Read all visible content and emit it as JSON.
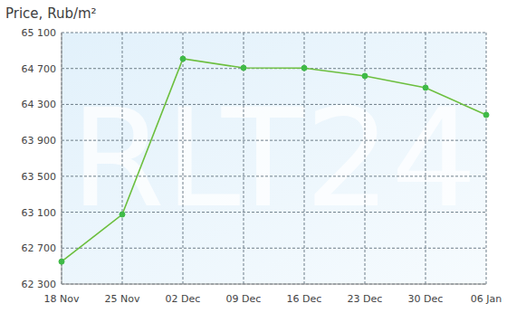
{
  "chart_data": {
    "type": "line",
    "title": "Price, Rub/m²",
    "categories": [
      "18 Nov",
      "25 Nov",
      "02 Dec",
      "09 Dec",
      "16 Dec",
      "23 Dec",
      "30 Dec",
      "06 Jan"
    ],
    "values": [
      62550,
      63075,
      64808,
      64707,
      64705,
      64617,
      64486,
      64183
    ],
    "color": "#6cbf3e",
    "marker": "circle",
    "ylim": [
      62300,
      65100
    ],
    "yticks": [
      {
        "value": 62300,
        "label": "62 300"
      },
      {
        "value": 62700,
        "label": "62 700"
      },
      {
        "value": 63100,
        "label": "63 100"
      },
      {
        "value": 63500,
        "label": "63 500"
      },
      {
        "value": 63900,
        "label": "63 900"
      },
      {
        "value": 64300,
        "label": "64 300"
      },
      {
        "value": 64700,
        "label": "64 700"
      },
      {
        "value": 65100,
        "label": "65 100"
      }
    ],
    "grid": true,
    "annotations": [
      "RLT24"
    ]
  }
}
